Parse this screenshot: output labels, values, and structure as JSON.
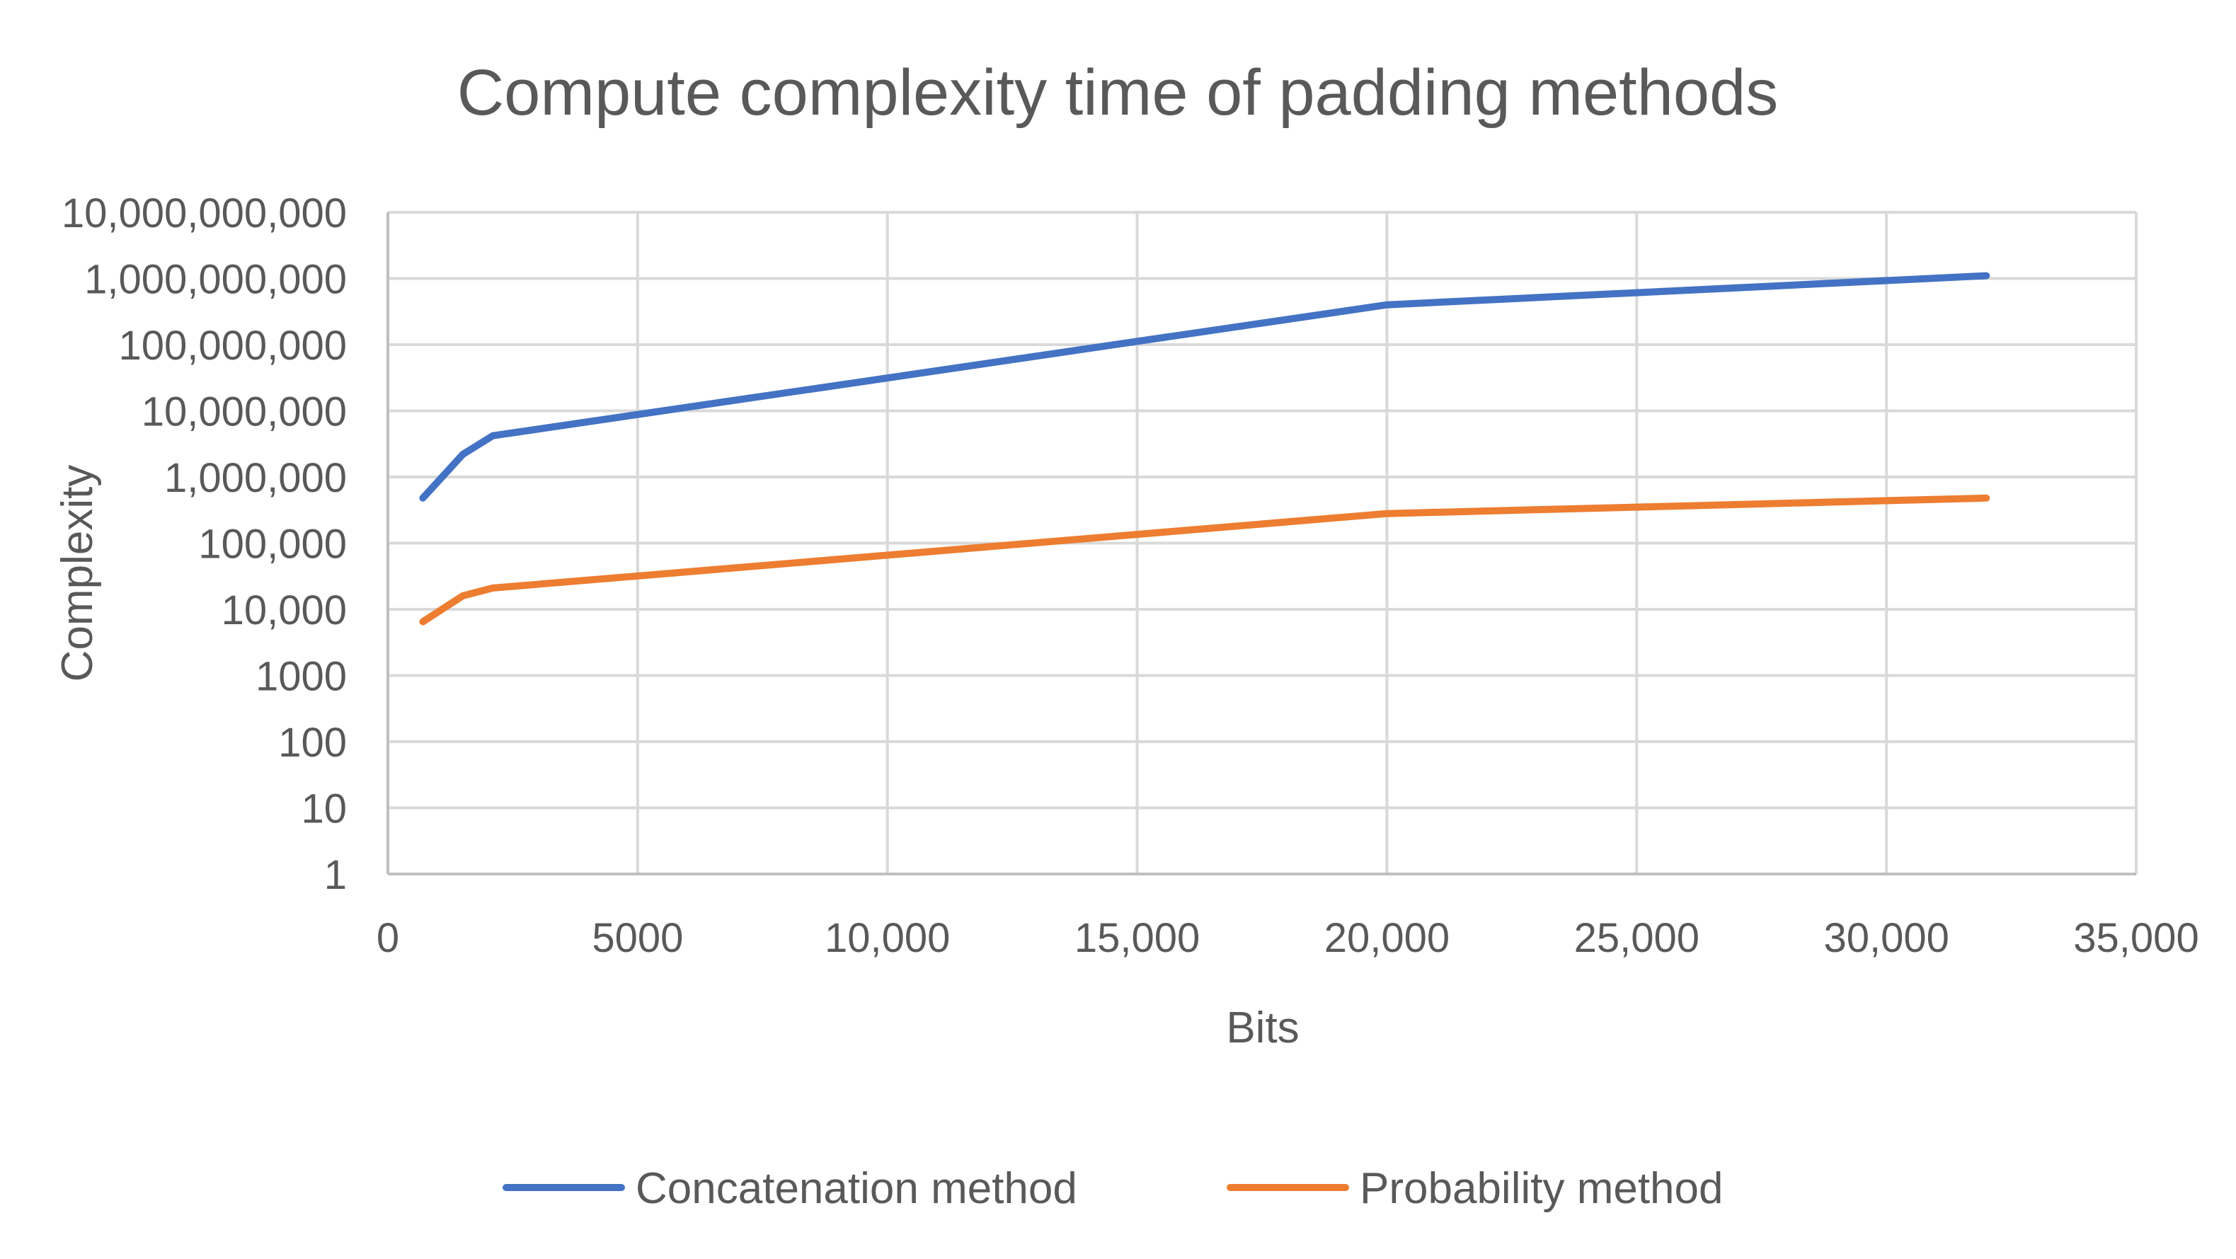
{
  "chart_data": {
    "type": "line",
    "title": "Compute complexity time of padding methods",
    "xlabel": "Bits",
    "ylabel": "Complexity",
    "xlim": [
      0,
      35000
    ],
    "ylim": [
      1,
      10000000000
    ],
    "y_scale": "log",
    "grid": true,
    "legend_position": "bottom",
    "x_ticks": [
      0,
      5000,
      10000,
      15000,
      20000,
      25000,
      30000,
      35000
    ],
    "x_tick_labels": [
      "0",
      "5000",
      "10,000",
      "15,000",
      "20,000",
      "25,000",
      "30,000",
      "35,000"
    ],
    "y_ticks": [
      1,
      10,
      100,
      1000,
      10000,
      100000,
      1000000,
      10000000,
      100000000,
      1000000000,
      10000000000
    ],
    "y_tick_labels": [
      "1",
      "10",
      "100",
      "1000",
      "10,000",
      "100,000",
      "1,000,000",
      "10,000,000",
      "100,000,000",
      "1,000,000,000",
      "10,000,000,000"
    ],
    "series": [
      {
        "name": "Concatenation method",
        "color": "#4472C4",
        "x": [
          700,
          1500,
          2100,
          20000,
          32000
        ],
        "y": [
          480000,
          2200000,
          4200000,
          400000000,
          1100000000
        ]
      },
      {
        "name": "Probability method",
        "color": "#ED7D31",
        "x": [
          700,
          1500,
          2100,
          20000,
          32000
        ],
        "y": [
          6500,
          16000,
          21000,
          280000,
          480000
        ]
      }
    ]
  }
}
